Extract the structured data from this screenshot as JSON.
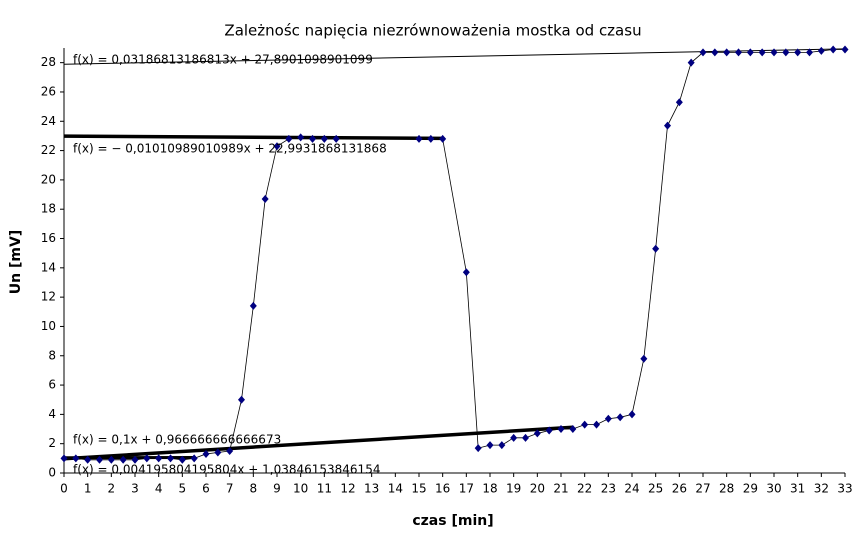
{
  "chart_data": {
    "type": "scatter",
    "title": "Zależnośc napięcia niezrównoważenia mostka od czasu",
    "x_label": "czas [min]",
    "y_label": "Un [mV]",
    "xlim": [
      0,
      33
    ],
    "ylim": [
      0,
      29
    ],
    "xticks": [
      0,
      1,
      2,
      3,
      4,
      5,
      6,
      7,
      8,
      9,
      10,
      11,
      12,
      13,
      14,
      15,
      16,
      17,
      18,
      19,
      20,
      21,
      22,
      23,
      24,
      25,
      26,
      27,
      28,
      29,
      30,
      31,
      32,
      33
    ],
    "yticks": [
      0,
      2,
      4,
      6,
      8,
      10,
      12,
      14,
      16,
      18,
      20,
      22,
      24,
      26,
      28
    ],
    "series": [
      {
        "color": "#000080",
        "x": [
          0,
          0.5,
          1,
          1.5,
          2,
          2.5,
          3,
          3.5,
          4,
          4.5,
          5,
          5.5,
          6,
          6.5,
          7,
          7.5,
          8,
          8.5,
          9,
          9.5,
          10,
          10.5,
          11,
          11.5,
          15,
          15.5,
          16,
          17,
          17.5,
          18,
          18.5,
          19,
          19.5,
          20,
          20.5,
          21,
          21.5,
          22,
          22.5,
          23,
          23.5,
          24,
          24.5,
          25,
          25.5,
          26,
          26.5,
          27,
          27.5,
          28,
          28.5,
          29,
          29.5,
          30,
          30.5,
          31,
          31.5,
          32,
          32.5,
          33
        ],
        "values": [
          1.0,
          1.0,
          0.9,
          0.9,
          0.9,
          0.9,
          0.9,
          1.0,
          1.0,
          1.0,
          0.9,
          1.0,
          1.3,
          1.4,
          1.5,
          5.0,
          11.4,
          18.7,
          22.3,
          22.8,
          22.9,
          22.8,
          22.8,
          22.8,
          22.8,
          22.8,
          22.8,
          13.7,
          1.7,
          1.9,
          1.9,
          2.4,
          2.4,
          2.7,
          2.9,
          3.0,
          3.0,
          3.3,
          3.3,
          3.7,
          3.8,
          4.0,
          7.8,
          15.3,
          23.7,
          25.3,
          28.0,
          28.7,
          28.7,
          28.7,
          28.7,
          28.7,
          28.7,
          28.7,
          28.7,
          28.7,
          28.7,
          28.8,
          28.9,
          28.9
        ]
      }
    ],
    "trendlines": [
      {
        "label": "f(x) = 0,03186813186813x + 27,8901098901099",
        "x": [
          0,
          33
        ],
        "values": [
          27.89,
          28.94
        ],
        "width": 1
      },
      {
        "label": "f(x) = − 0,01010989010989x + 22,9931868131868",
        "x": [
          0,
          16
        ],
        "values": [
          22.99,
          22.83
        ],
        "width": 3.5
      },
      {
        "label": "f(x) = 0,1x + 0,966666666666673",
        "x": [
          0,
          21.5
        ],
        "values": [
          0.97,
          3.12
        ],
        "width": 3.5
      },
      {
        "label": "f(x) = 0,004195804195804x + 1,03846153846154",
        "x": [
          0,
          5.5
        ],
        "values": [
          1.04,
          1.06
        ],
        "width": 3
      }
    ]
  }
}
